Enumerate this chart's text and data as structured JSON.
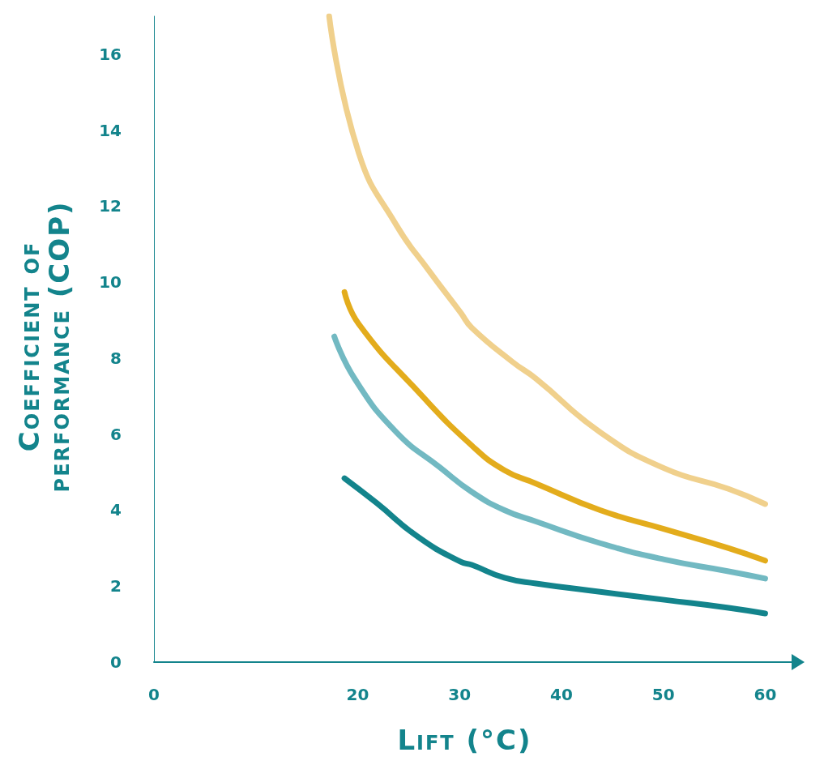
{
  "chart_data": {
    "type": "line",
    "xlabel": "Lift (°C)",
    "ylabel": "Coefficient of performance (COP)",
    "xlim": [
      0,
      61
    ],
    "xticks": [
      0,
      20,
      30,
      40,
      50,
      60
    ],
    "ylim": [
      0,
      17
    ],
    "yticks": [
      0,
      2,
      4,
      6,
      8,
      10,
      12,
      14,
      16
    ],
    "grid": false,
    "marker": "none",
    "line_style": "solid",
    "series": [
      {
        "color": "#f0d08c",
        "x": [
          17.2,
          20.1,
          23.8,
          27,
          30.1,
          31.2,
          35.2,
          37.5,
          43.8,
          50.1,
          56.4,
          60
        ],
        "values": [
          17.0,
          13.4,
          11.5,
          10.3,
          9.2,
          8.8,
          7.9,
          7.46,
          6.05,
          5.1,
          4.56,
          4.16
        ]
      },
      {
        "color": "#e3ac1c",
        "x": [
          18.7,
          20.1,
          26,
          31.2,
          34.4,
          37.5,
          43.8,
          50.1,
          56.4,
          60
        ],
        "values": [
          9.74,
          8.9,
          7.1,
          5.7,
          5.05,
          4.7,
          4.0,
          3.5,
          3.0,
          2.67
        ]
      },
      {
        "color": "#72b9c2",
        "x": [
          17.7,
          19.7,
          23.8,
          28.1,
          31.2,
          34.4,
          37.5,
          43.8,
          50.1,
          56.4,
          60
        ],
        "values": [
          8.57,
          7.46,
          6.05,
          5.12,
          4.48,
          4.0,
          3.7,
          3.13,
          2.7,
          2.39,
          2.2
        ]
      },
      {
        "color": "#13848c",
        "x": [
          18.7,
          21.8,
          26,
          30.1,
          31.2,
          34.4,
          37.5,
          43.8,
          50.1,
          56.4,
          60
        ],
        "values": [
          4.84,
          4.2,
          3.28,
          2.64,
          2.56,
          2.22,
          2.07,
          1.85,
          1.64,
          1.43,
          1.28
        ]
      }
    ]
  }
}
